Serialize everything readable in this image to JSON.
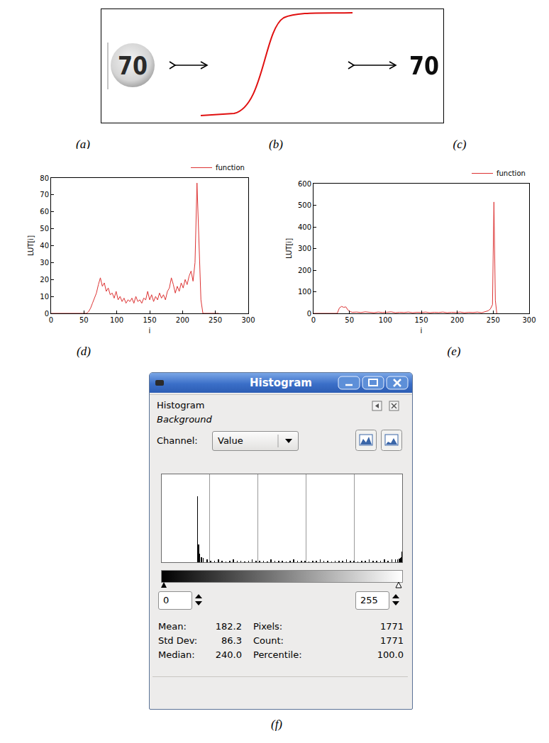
{
  "panel_labels": [
    "(a)",
    "(b)",
    "(c)",
    "(d)",
    "(e)",
    "(f)"
  ],
  "pipeline": {
    "input_text": "70",
    "output_text": "70"
  },
  "chart_data": [
    {
      "type": "line",
      "x_label": "i",
      "y_label": "LUT[i]",
      "x": [
        0,
        3,
        6,
        9,
        12,
        15,
        18,
        21,
        24,
        27,
        30,
        33,
        36,
        39,
        42,
        45,
        48,
        51,
        54,
        57,
        60,
        63,
        66,
        69,
        72,
        75,
        78,
        81,
        84,
        87,
        90,
        93,
        96,
        99,
        102,
        105,
        108,
        111,
        114,
        117,
        120,
        123,
        126,
        129,
        132,
        135,
        138,
        141,
        144,
        147,
        150,
        153,
        156,
        159,
        162,
        165,
        168,
        171,
        174,
        177,
        180,
        183,
        186,
        189,
        192,
        195,
        198,
        201,
        204,
        207,
        210,
        213,
        216,
        219,
        222,
        225,
        228,
        231,
        234,
        237,
        240,
        243,
        246,
        249,
        252,
        255
      ],
      "series": [
        {
          "name": "function",
          "color": "#dd3333",
          "values": [
            0,
            0,
            0,
            0,
            0,
            0,
            0,
            0,
            0,
            0,
            0,
            0,
            0,
            0,
            0,
            0,
            0,
            0,
            0,
            1,
            3,
            6,
            9,
            12,
            17,
            21,
            16,
            18,
            13,
            15,
            11,
            12,
            9,
            13,
            8,
            10,
            7,
            9,
            6,
            8,
            7,
            9,
            6,
            10,
            7,
            8,
            6,
            9,
            8,
            13,
            8,
            11,
            7,
            10,
            8,
            12,
            9,
            11,
            8,
            13,
            15,
            21,
            17,
            12,
            16,
            13,
            18,
            15,
            20,
            17,
            22,
            25,
            19,
            30,
            77,
            40,
            8,
            0,
            0,
            0,
            0,
            0,
            0,
            0,
            0,
            0
          ]
        }
      ],
      "xlim": [
        0,
        300
      ],
      "xticks": [
        0,
        50,
        100,
        150,
        200,
        250,
        300
      ],
      "ylim": [
        0,
        80
      ],
      "yticks": [
        0,
        10,
        20,
        30,
        40,
        50,
        60,
        70,
        80
      ],
      "grid": false,
      "legend": "top right"
    },
    {
      "type": "line",
      "x_label": "i",
      "y_label": "LUT[i]",
      "x": [
        0,
        3,
        6,
        9,
        12,
        15,
        18,
        21,
        24,
        27,
        30,
        33,
        36,
        39,
        42,
        45,
        48,
        51,
        54,
        60,
        66,
        72,
        78,
        84,
        90,
        96,
        102,
        108,
        114,
        120,
        126,
        132,
        138,
        144,
        150,
        156,
        162,
        168,
        174,
        180,
        186,
        192,
        198,
        204,
        210,
        216,
        222,
        228,
        234,
        240,
        243,
        246,
        249,
        251,
        253,
        255
      ],
      "series": [
        {
          "name": "function",
          "color": "#dd3333",
          "values": [
            0,
            0,
            0,
            0,
            0,
            0,
            0,
            0,
            0,
            0,
            0,
            0,
            25,
            32,
            28,
            30,
            15,
            8,
            5,
            6,
            4,
            7,
            5,
            3,
            6,
            4,
            5,
            7,
            3,
            5,
            4,
            6,
            3,
            5,
            4,
            6,
            3,
            5,
            4,
            6,
            3,
            5,
            4,
            6,
            3,
            5,
            4,
            6,
            3,
            8,
            12,
            20,
            40,
            515,
            60,
            0
          ]
        }
      ],
      "xlim": [
        0,
        300
      ],
      "xticks": [
        0,
        50,
        100,
        150,
        200,
        250,
        300
      ],
      "ylim": [
        0,
        600
      ],
      "yticks": [
        0,
        100,
        200,
        300,
        400,
        500,
        600
      ],
      "grid": false,
      "legend": "top right"
    },
    {
      "type": "bar",
      "x": [
        38,
        39,
        40,
        42,
        44,
        48,
        52,
        56,
        60,
        64,
        68,
        72,
        76,
        80,
        84,
        88,
        92,
        96,
        100,
        104,
        108,
        112,
        116,
        120,
        124,
        128,
        132,
        136,
        140,
        144,
        148,
        152,
        156,
        160,
        164,
        168,
        172,
        176,
        180,
        184,
        188,
        192,
        196,
        200,
        204,
        208,
        212,
        216,
        220,
        224,
        228,
        232,
        236,
        240,
        244,
        248,
        250,
        252,
        253,
        254,
        255
      ],
      "values": [
        75,
        20,
        10,
        6,
        5,
        3,
        2,
        2,
        3,
        2,
        1,
        2,
        3,
        2,
        2,
        1,
        2,
        3,
        2,
        2,
        2,
        1,
        3,
        2,
        2,
        2,
        1,
        2,
        3,
        2,
        2,
        2,
        1,
        2,
        2,
        3,
        2,
        2,
        1,
        2,
        2,
        2,
        3,
        2,
        2,
        1,
        2,
        2,
        3,
        2,
        2,
        2,
        3,
        2,
        3,
        3,
        3,
        4,
        5,
        6,
        12
      ],
      "color": "#000000",
      "xlim": [
        0,
        255
      ],
      "xticks": [
        0,
        51,
        102,
        153,
        204,
        255
      ],
      "ylim": [
        0,
        100
      ],
      "yticks": [],
      "grid": true,
      "tick_labels": false
    }
  ],
  "histogram_window": {
    "title_bar": "Histogram",
    "heading": "Histogram",
    "subheading": "Background",
    "channel_label": "Channel:",
    "channel": "Value",
    "range_low": "0",
    "range_high": "255",
    "stats": [
      [
        "Mean:",
        "182.2",
        "Pixels:",
        "1771"
      ],
      [
        "Std Dev:",
        "86.3",
        "Count:",
        "1771"
      ],
      [
        "Median:",
        "240.0",
        "Percentile:",
        "100.0"
      ]
    ]
  }
}
